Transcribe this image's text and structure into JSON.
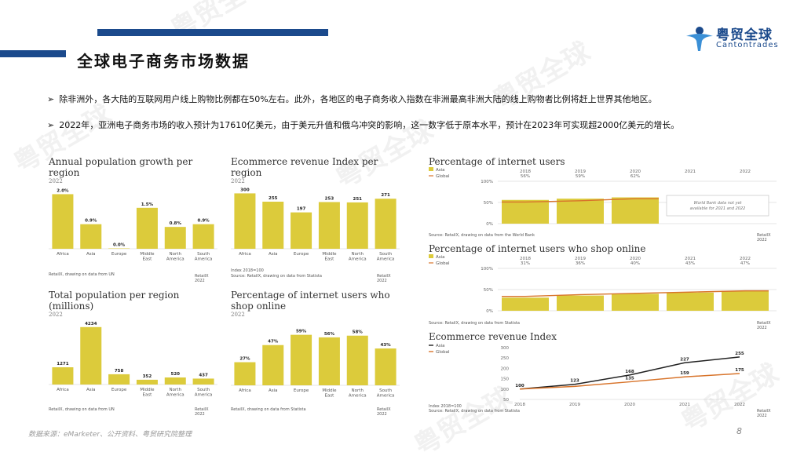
{
  "page": {
    "title": "全球电子商务市场数据",
    "logo_cn": "粤贸全球",
    "logo_en": "Cantontrades",
    "watermark": "粤贸全球",
    "bullets": [
      "除非洲外，各大陆的互联网用户线上购物比例都在50%左右。此外，各地区的电子商务收入指数在非洲最高非洲大陆的线上购物者比例将赶上世界其他地区。",
      "2022年，亚洲电子商务市场的收入预计为17610亿美元，由于美元升值和俄乌冲突的影响，这一数字低于原本水平，预计在2023年可实现超2000亿美元的增长。"
    ],
    "footer": "数据来源：eMarketer、公开资料、粤贸研究院整理",
    "page_number": "8",
    "bar_color": "#dccb3b",
    "accent_color": "#1b4a8c"
  },
  "chart_data": [
    {
      "type": "bar",
      "title": "Annual population growth per region",
      "year": "2022",
      "categories": [
        "Africa",
        "Asia",
        "Europe",
        "Middle East",
        "North America",
        "South America"
      ],
      "values": [
        2.0,
        0.9,
        0.0,
        1.5,
        0.8,
        0.9
      ],
      "labels": [
        "2.0%",
        "0.9%",
        "0.0%",
        "1.5%",
        "0.8%",
        "0.9%"
      ],
      "ylim": [
        0,
        2.3
      ],
      "source": "RetailX, drawing on data from UN",
      "credit": "RetailX 2022"
    },
    {
      "type": "bar",
      "title": "Ecommerce revenue Index per region",
      "year": "2022",
      "categories": [
        "Africa",
        "Asia",
        "Europe",
        "Middle East",
        "North America",
        "South America"
      ],
      "values": [
        300,
        255,
        197,
        253,
        251,
        271
      ],
      "labels": [
        "300",
        "255",
        "197",
        "253",
        "251",
        "271"
      ],
      "ylim": [
        0,
        340
      ],
      "note": "Index 2018=100",
      "source": "Source: RetailX, drawing on data from Statista",
      "credit": "RetailX 2022"
    },
    {
      "type": "bar",
      "title": "Total population per region (millions)",
      "year": "2022",
      "categories": [
        "Africa",
        "Asia",
        "Europe",
        "Middle East",
        "North America",
        "South America"
      ],
      "values": [
        1271,
        4234,
        758,
        352,
        520,
        437
      ],
      "labels": [
        "1271",
        "4234",
        "758",
        "352",
        "520",
        "437"
      ],
      "ylim": [
        0,
        4800
      ],
      "source": "RetailX, drawing on data from UN",
      "credit": "RetailX 2022"
    },
    {
      "type": "bar",
      "title_lines": [
        "Percentage of internet users who",
        "shop online"
      ],
      "year": "2022",
      "categories": [
        "Africa",
        "Asia",
        "Europe",
        "Middle East",
        "North America",
        "South America"
      ],
      "values": [
        27,
        47,
        59,
        56,
        58,
        43
      ],
      "labels": [
        "27%",
        "47%",
        "59%",
        "56%",
        "58%",
        "43%"
      ],
      "ylim": [
        0,
        66
      ],
      "source": "RetailX, drawing on data from Statista",
      "credit": "RetailX 2022"
    },
    {
      "type": "bar",
      "title": "Percentage of internet users",
      "legend": [
        "Asia",
        "Global"
      ],
      "x": [
        "2018",
        "2019",
        "2020",
        "2021",
        "2022"
      ],
      "asia_labels": [
        "56%",
        "59%",
        "62%",
        "",
        ""
      ],
      "asia_values": [
        56,
        59,
        62,
        null,
        null
      ],
      "global_values": [
        51,
        54,
        59,
        null,
        null
      ],
      "y_ticks": [
        "100%",
        "50%",
        "0%"
      ],
      "ylim": [
        0,
        100
      ],
      "note_box": [
        "World Bank data not yet",
        "available for 2021 and 2022"
      ],
      "source": "Source: RetailX, drawing on data from the World Bank",
      "credit": "RetailX 2022"
    },
    {
      "type": "bar",
      "title": "Percentage of internet users who shop online",
      "legend": [
        "Asia",
        "Global"
      ],
      "x": [
        "2018",
        "2019",
        "2020",
        "2021",
        "2022"
      ],
      "asia_labels": [
        "31%",
        "36%",
        "40%",
        "43%",
        "47%"
      ],
      "asia_values": [
        31,
        36,
        40,
        43,
        47
      ],
      "global_values": [
        34,
        38,
        41,
        44,
        47
      ],
      "y_ticks": [
        "100%",
        "50%",
        "0%"
      ],
      "ylim": [
        0,
        100
      ],
      "source": "Source: RetailX, drawing on data from Statista",
      "credit": "RetailX 2022"
    },
    {
      "type": "line",
      "title": "Ecommerce revenue Index",
      "legend": [
        "Asia",
        "Global"
      ],
      "x": [
        "2018",
        "2019",
        "2020",
        "2021",
        "2022"
      ],
      "series": [
        {
          "name": "Asia",
          "values": [
            100,
            123,
            168,
            227,
            255
          ],
          "labels": [
            "100",
            "123",
            "168",
            "227",
            "255"
          ]
        },
        {
          "name": "Global",
          "values": [
            100,
            113,
            135,
            159,
            175
          ],
          "labels": [
            "",
            "",
            "135",
            "159",
            "175"
          ]
        }
      ],
      "y_ticks": [
        "300",
        "250",
        "200",
        "150",
        "100",
        "50"
      ],
      "ylim": [
        50,
        300
      ],
      "note": "Index 2018=100",
      "source": "Source: RetailX, drawing on data from Statista",
      "credit": "RetailX 2022"
    }
  ]
}
